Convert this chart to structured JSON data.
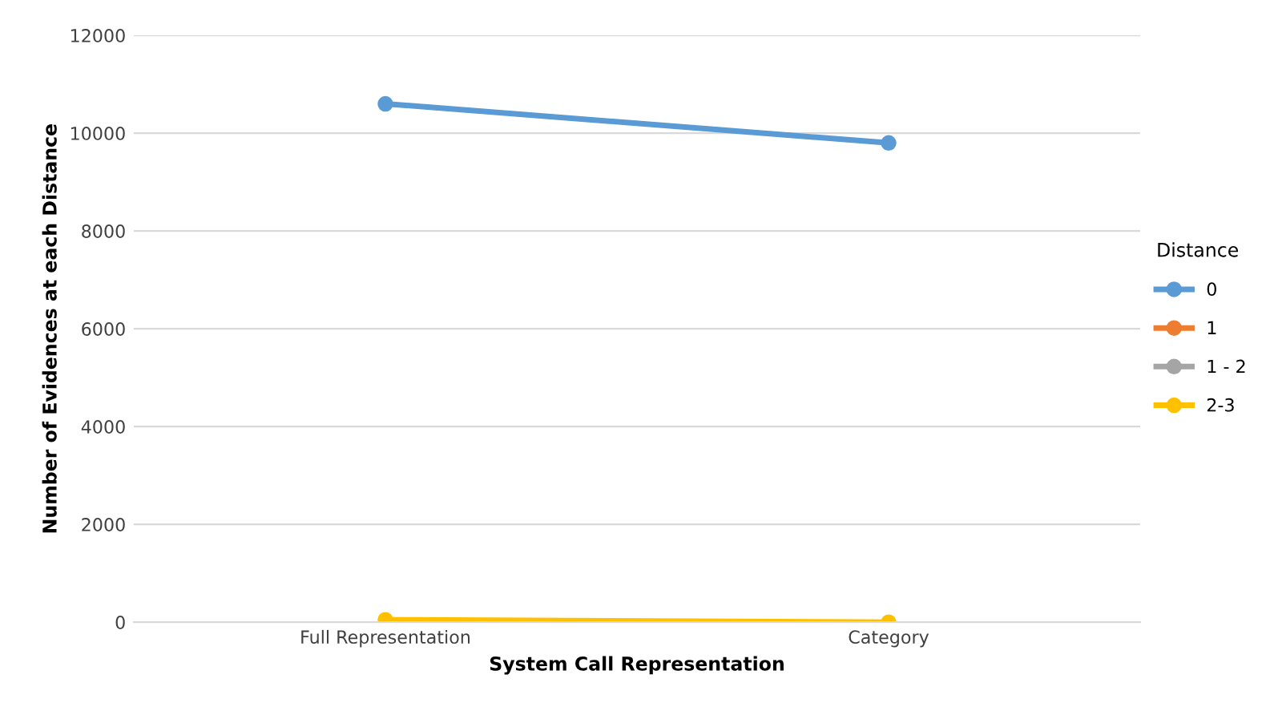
{
  "chart_data": {
    "type": "line",
    "xlabel": "System Call Representation",
    "ylabel": "Number of Evidences at each Distance",
    "legend_title": "Distance",
    "categories": [
      "Full Representation",
      "Category"
    ],
    "series": [
      {
        "name": "0",
        "color": "#5b9bd5",
        "values": [
          10600,
          9800
        ]
      },
      {
        "name": "1",
        "color": "#ed7d31",
        "values": [
          null,
          null
        ]
      },
      {
        "name": "1 - 2",
        "color": "#a5a5a5",
        "values": [
          null,
          null
        ]
      },
      {
        "name": "2-3",
        "color": "#ffc000",
        "values": [
          50,
          0
        ]
      }
    ],
    "ylim": [
      0,
      12000
    ],
    "yticks": [
      0,
      2000,
      4000,
      6000,
      8000,
      10000,
      12000
    ],
    "grid": "y",
    "legend": "right",
    "marker": "circle"
  }
}
